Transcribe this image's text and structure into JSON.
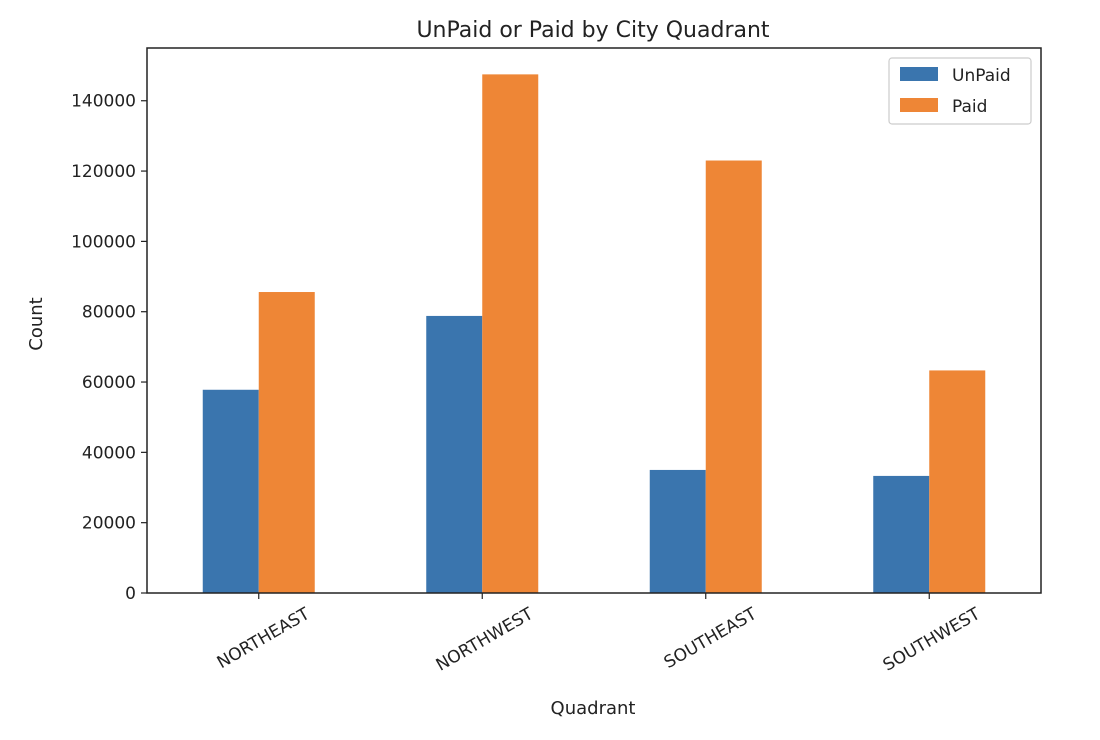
{
  "chart_data": {
    "type": "bar",
    "title": "UnPaid or Paid by City Quadrant",
    "xlabel": "Quadrant",
    "ylabel": "Count",
    "categories": [
      "NORTHEAST",
      "NORTHWEST",
      "SOUTHEAST",
      "SOUTHWEST"
    ],
    "series": [
      {
        "name": "UnPaid",
        "color": "#3a75ae",
        "values": [
          57800,
          78800,
          35000,
          33300
        ]
      },
      {
        "name": "Paid",
        "color": "#ee8636",
        "values": [
          85600,
          147500,
          123000,
          63300
        ]
      }
    ],
    "ylim": [
      0,
      155000
    ],
    "yticks": [
      0,
      20000,
      40000,
      60000,
      80000,
      100000,
      120000,
      140000
    ],
    "ytick_labels": [
      "0",
      "20000",
      "40000",
      "60000",
      "80000",
      "100000",
      "120000",
      "140000"
    ],
    "grid": false,
    "legend_position": "top-right"
  }
}
